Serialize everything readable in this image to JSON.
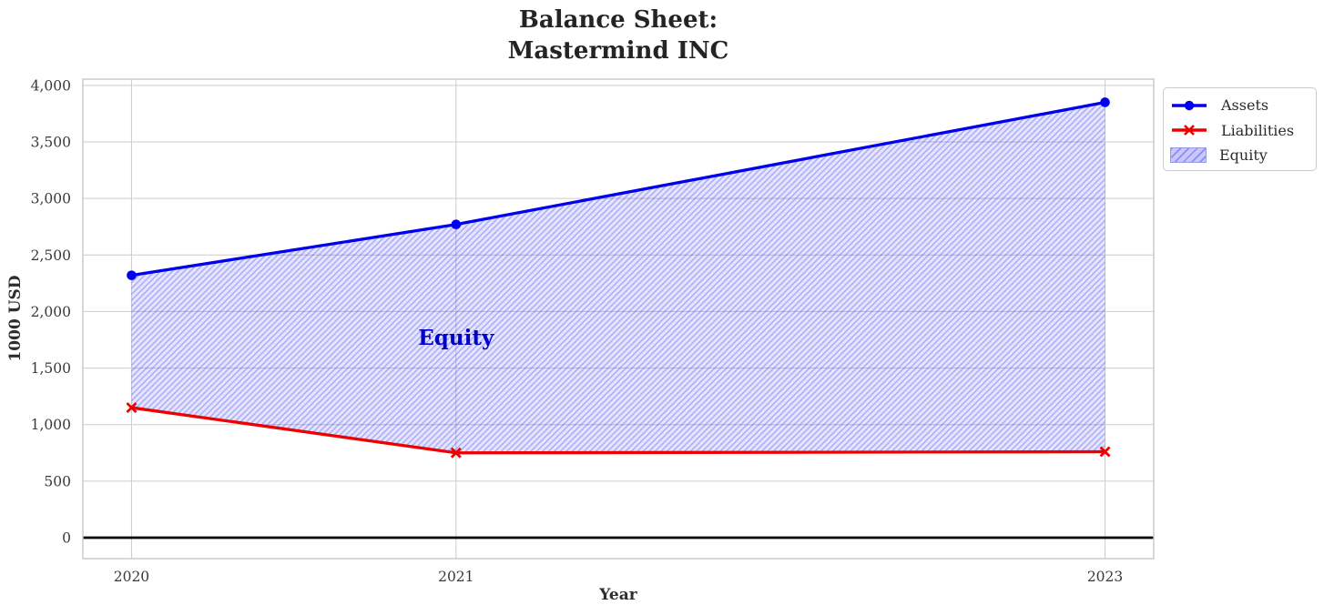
{
  "figure": {
    "title_line1": "Balance Sheet:",
    "title_line2": "Mastermind INC"
  },
  "chart_data": {
    "type": "line",
    "title": "Balance Sheet:\nMastermind INC",
    "xlabel": "Year",
    "ylabel": "1000 USD",
    "x": [
      2020,
      2021,
      2023
    ],
    "x_tick_labels": [
      "2020",
      "2021",
      "2023"
    ],
    "y_ticks": [
      0,
      500,
      1000,
      1500,
      2000,
      2500,
      3000,
      3500,
      4000
    ],
    "y_tick_labels": [
      "0",
      "500",
      "1,000",
      "1,500",
      "2,000",
      "2,500",
      "3,000",
      "3,500",
      "4,000"
    ],
    "xlim": [
      2019.85,
      2023.15
    ],
    "ylim": [
      -185,
      4055
    ],
    "grid": true,
    "series": [
      {
        "name": "Assets",
        "values": [
          2320,
          2770,
          3850
        ],
        "color": "#0000ee",
        "marker": "circle"
      },
      {
        "name": "Liabilities",
        "values": [
          1150,
          750,
          760
        ],
        "color": "#ee0000",
        "marker": "x"
      }
    ],
    "fill_between": {
      "name": "Equity",
      "upper": "Assets",
      "lower": "Liabilities",
      "hatch": "//",
      "fill_color": "rgba(0,0,238,0.10)",
      "hatch_color": "rgba(0,0,238,0.24)",
      "legend_fill_color": "rgba(0,0,238,0.22)",
      "legend_hatch_color": "rgba(0,0,238,0.45)"
    },
    "annotation": {
      "text": "Equity",
      "x": 2021,
      "y": 1750,
      "color": "#0000cc"
    },
    "zero_line": {
      "y": 0,
      "color": "#000000"
    },
    "legend": {
      "position": "outside-upper-right",
      "entries": [
        "Assets",
        "Liabilities",
        "Equity"
      ]
    },
    "colors": {
      "grid": "#cccccc",
      "spine": "#c8c8c8",
      "tick_text": "#3a3a3a",
      "title_text": "#242424"
    }
  }
}
